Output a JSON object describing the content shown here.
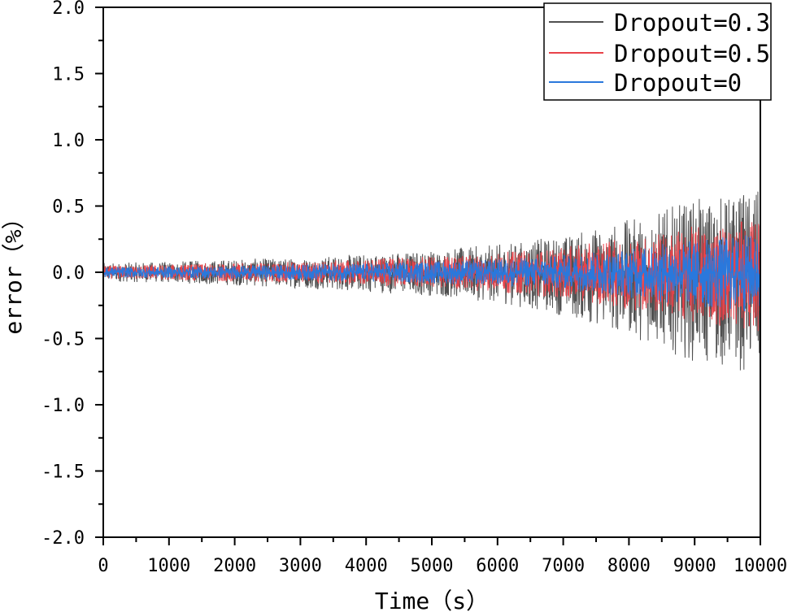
{
  "chart_data": {
    "type": "line",
    "title": "",
    "xlabel": "Time（s）",
    "ylabel": "error（%）",
    "xlim": [
      0,
      10000
    ],
    "ylim": [
      -2.0,
      2.0
    ],
    "x_ticks": [
      0,
      1000,
      2000,
      3000,
      4000,
      5000,
      6000,
      7000,
      8000,
      9000,
      10000
    ],
    "x_tick_labels": [
      "0",
      "1000",
      "2000",
      "3000",
      "4000",
      "5000",
      "6000",
      "7000",
      "8000",
      "9000",
      "10000"
    ],
    "y_ticks": [
      2.0,
      1.5,
      1.0,
      0.5,
      0.0,
      -0.5,
      -1.0,
      -1.5,
      -2.0
    ],
    "y_tick_labels": [
      "2.0",
      "1.5",
      "1.0",
      "0.5",
      "0.0",
      "-0.5",
      "-1.0",
      "-1.5",
      "-2.0"
    ],
    "grid": false,
    "legend_position": "top-right",
    "envelope_x": [
      0,
      1000,
      2000,
      3000,
      4000,
      5000,
      6000,
      7000,
      8000,
      9000,
      10000
    ],
    "series": [
      {
        "name": "Dropout=0.3",
        "color": "#505050",
        "upper": [
          0.07,
          0.08,
          0.1,
          0.11,
          0.14,
          0.17,
          0.21,
          0.28,
          0.4,
          0.55,
          0.62
        ],
        "lower": [
          -0.07,
          -0.08,
          -0.1,
          -0.12,
          -0.15,
          -0.18,
          -0.23,
          -0.33,
          -0.48,
          -0.68,
          -0.78
        ]
      },
      {
        "name": "Dropout=0.5",
        "color": "#e8434a",
        "upper": [
          0.05,
          0.06,
          0.07,
          0.08,
          0.1,
          0.12,
          0.15,
          0.19,
          0.26,
          0.35,
          0.4
        ],
        "lower": [
          -0.05,
          -0.06,
          -0.07,
          -0.08,
          -0.1,
          -0.12,
          -0.15,
          -0.2,
          -0.28,
          -0.38,
          -0.45
        ]
      },
      {
        "name": "Dropout=0",
        "color": "#2a78dc",
        "upper": [
          0.04,
          0.045,
          0.05,
          0.06,
          0.07,
          0.085,
          0.1,
          0.13,
          0.18,
          0.25,
          0.3
        ],
        "lower": [
          -0.04,
          -0.045,
          -0.05,
          -0.06,
          -0.07,
          -0.085,
          -0.1,
          -0.13,
          -0.19,
          -0.27,
          -0.32
        ]
      }
    ]
  }
}
